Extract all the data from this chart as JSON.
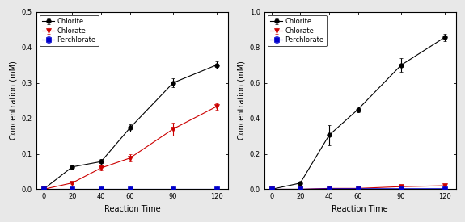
{
  "x": [
    0,
    20,
    40,
    60,
    90,
    120
  ],
  "left_chlorite_y": [
    0.0,
    0.063,
    0.078,
    0.173,
    0.3,
    0.35
  ],
  "left_chlorite_err": [
    0.002,
    0.005,
    0.008,
    0.01,
    0.012,
    0.01
  ],
  "left_chlorate_y": [
    0.0,
    0.018,
    0.06,
    0.088,
    0.17,
    0.233
  ],
  "left_chlorate_err": [
    0.001,
    0.004,
    0.006,
    0.01,
    0.018,
    0.008
  ],
  "left_perchlorate_y": [
    0.0,
    0.0,
    0.0,
    0.0,
    0.0,
    0.0
  ],
  "left_perchlorate_err": [
    0.0005,
    0.0005,
    0.0005,
    0.0005,
    0.0005,
    0.0005
  ],
  "left_ylim": [
    0,
    0.5
  ],
  "left_yticks": [
    0.0,
    0.1,
    0.2,
    0.3,
    0.4,
    0.5
  ],
  "right_chlorite_y": [
    0.0,
    0.035,
    0.305,
    0.45,
    0.7,
    0.855
  ],
  "right_chlorite_err": [
    0.002,
    0.008,
    0.055,
    0.015,
    0.04,
    0.02
  ],
  "right_chlorate_y": [
    0.0,
    0.0,
    0.005,
    0.005,
    0.015,
    0.02
  ],
  "right_chlorate_err": [
    0.001,
    0.001,
    0.002,
    0.002,
    0.004,
    0.004
  ],
  "right_perchlorate_y": [
    0.0,
    0.0,
    0.003,
    0.003,
    0.003,
    0.003
  ],
  "right_perchlorate_err": [
    0.001,
    0.001,
    0.002,
    0.002,
    0.001,
    0.001
  ],
  "right_ylim": [
    0,
    1.0
  ],
  "right_yticks": [
    0.0,
    0.2,
    0.4,
    0.6,
    0.8,
    1.0
  ],
  "xlabel": "Reaction Time",
  "ylabel": "Concentration (mM)",
  "legend_labels": [
    "Chlorite",
    "Chlorate",
    "Perchlorate"
  ],
  "chlorite_color": "#000000",
  "chlorate_color": "#cc0000",
  "perchlorate_color": "#0000cc",
  "markers": [
    "o",
    "v",
    "s"
  ],
  "marker_size": 4,
  "linewidth": 0.8,
  "capsize": 1.5,
  "background_color": "#e8e8e8",
  "plot_bg_color": "#ffffff",
  "x_ticks": [
    0,
    20,
    40,
    60,
    90,
    120
  ],
  "tick_fontsize": 6,
  "label_fontsize": 7,
  "legend_fontsize": 6
}
